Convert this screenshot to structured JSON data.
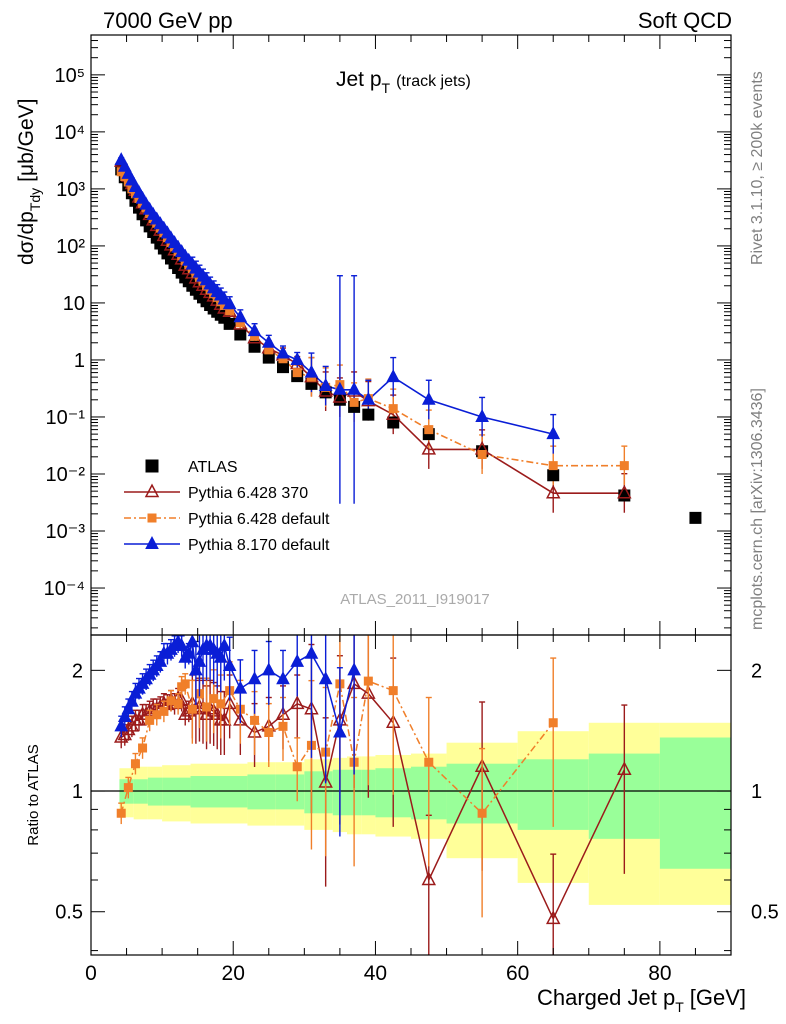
{
  "header": {
    "left": "7000 GeV pp",
    "right": "Soft QCD"
  },
  "side_labels": {
    "rivet": "Rivet 3.1.10, ≥ 200k events",
    "mcplots": "mcplots.cern.ch [arXiv:1306.3436]"
  },
  "chart_data": [
    {
      "type": "scatter",
      "panel": "main",
      "title": "Jet p",
      "title_sub": "T",
      "title_extra": "(track jets)",
      "ylabel": "dσ/dp",
      "ylabel_sub": "Tdy",
      "ylabel_unit": "[μb/GeV]",
      "yscale": "log",
      "xlim": [
        0,
        90
      ],
      "ylim": [
        1.5e-05,
        500000
      ],
      "ytick_labels": [
        "10⁻⁴",
        "10⁻³",
        "10⁻²",
        "10⁻¹",
        "1",
        "10",
        "10²",
        "10³",
        "10⁴",
        "10⁵"
      ],
      "watermark": "ATLAS_2011_I919017",
      "legend_position": "lower-left",
      "series": [
        {
          "name": "ATLAS",
          "color": "#000000",
          "marker": "square",
          "x": [
            4.25,
            4.75,
            5.25,
            5.75,
            6.25,
            6.75,
            7.25,
            7.75,
            8.25,
            8.75,
            9.25,
            9.75,
            10.25,
            10.75,
            11.25,
            11.75,
            12.25,
            12.75,
            13.25,
            13.75,
            14.25,
            14.75,
            15.25,
            15.75,
            16.25,
            16.75,
            17.25,
            17.75,
            18.25,
            18.75,
            19.5,
            21,
            23,
            25,
            27,
            29,
            31,
            33,
            35,
            37,
            39,
            42.5,
            47.5,
            55,
            65,
            75,
            85
          ],
          "y": [
            2200,
            1600,
            1150,
            840,
            620,
            470,
            360,
            280,
            220,
            175,
            140,
            110,
            90,
            74,
            60,
            50,
            41,
            34,
            28,
            24,
            20,
            17,
            14.5,
            12.5,
            10.7,
            9.2,
            8.0,
            7.0,
            6.2,
            5.5,
            4.3,
            2.8,
            1.7,
            1.1,
            0.75,
            0.52,
            0.38,
            0.27,
            0.2,
            0.15,
            0.11,
            0.08,
            0.05,
            0.025,
            0.0095,
            0.0042,
            0.0017
          ]
        },
        {
          "name": "Pythia 6.428 370",
          "color": "#9b1b1b",
          "marker": "open-triangle",
          "line": "solid",
          "x": [
            4.25,
            4.75,
            5.25,
            5.75,
            6.25,
            6.75,
            7.25,
            7.75,
            8.25,
            8.75,
            9.25,
            9.75,
            10.25,
            10.75,
            11.25,
            11.75,
            12.25,
            12.75,
            13.25,
            13.75,
            14.25,
            14.75,
            15.25,
            15.75,
            16.25,
            16.75,
            17.25,
            17.75,
            18.25,
            18.75,
            19.5,
            21,
            23,
            25,
            27,
            29,
            31,
            33,
            35,
            37,
            39,
            42.5,
            47.5,
            55,
            65,
            75
          ],
          "y": [
            3000,
            2250,
            1650,
            1220,
            930,
            710,
            560,
            440,
            350,
            280,
            225,
            185,
            150,
            123,
            102,
            84,
            70,
            58,
            45,
            39,
            33,
            27,
            23,
            20,
            17,
            15,
            13,
            11,
            9.3,
            8.0,
            7.0,
            4.2,
            2.4,
            1.6,
            1.2,
            0.85,
            0.5,
            0.28,
            0.22,
            0.28,
            0.19,
            0.11,
            0.027,
            0.027,
            0.0046,
            0.0046
          ]
        },
        {
          "name": "Pythia 6.428 default",
          "color": "#f07f2a",
          "marker": "small-square",
          "line": "dash-dot",
          "x": [
            4.25,
            4.75,
            5.25,
            5.75,
            6.25,
            6.75,
            7.25,
            7.75,
            8.25,
            8.75,
            9.25,
            9.75,
            10.25,
            10.75,
            11.25,
            11.75,
            12.25,
            12.75,
            13.25,
            13.75,
            14.25,
            14.75,
            15.25,
            15.75,
            16.25,
            16.75,
            17.25,
            17.75,
            18.25,
            18.75,
            19.5,
            21,
            23,
            25,
            27,
            29,
            31,
            33,
            35,
            37,
            39,
            42.5,
            47.5,
            55,
            65,
            75
          ],
          "y": [
            2000,
            1650,
            1320,
            1000,
            820,
            680,
            560,
            460,
            370,
            300,
            250,
            205,
            170,
            140,
            115,
            96,
            80,
            67,
            55,
            47,
            40,
            33,
            28,
            24,
            20,
            17,
            14.5,
            12.5,
            10.5,
            9.0,
            7.3,
            4.5,
            2.6,
            1.5,
            1.05,
            0.6,
            0.5,
            0.33,
            0.37,
            0.18,
            0.21,
            0.14,
            0.06,
            0.022,
            0.014,
            0.014
          ]
        },
        {
          "name": "Pythia 8.170 default",
          "color": "#0a1ed6",
          "marker": "triangle",
          "line": "solid",
          "x": [
            4.25,
            4.75,
            5.25,
            5.75,
            6.25,
            6.75,
            7.25,
            7.75,
            8.25,
            8.75,
            9.25,
            9.75,
            10.25,
            10.75,
            11.25,
            11.75,
            12.25,
            12.75,
            13.25,
            13.75,
            14.25,
            14.75,
            15.25,
            15.75,
            16.25,
            16.75,
            17.25,
            17.75,
            18.25,
            18.75,
            19.5,
            21,
            23,
            25,
            27,
            29,
            31,
            33,
            35,
            37,
            39,
            42.5,
            47.5,
            55,
            65
          ],
          "y": [
            3200,
            2450,
            1830,
            1400,
            1080,
            850,
            670,
            530,
            430,
            350,
            290,
            240,
            200,
            165,
            135,
            112,
            93,
            78,
            65,
            55,
            47,
            40,
            34,
            29,
            25,
            21,
            18,
            15.5,
            13.5,
            11.5,
            9.5,
            5.6,
            3.2,
            2.0,
            1.3,
            1.0,
            0.6,
            0.35,
            0.3,
            0.3,
            0.2,
            0.5,
            0.2,
            0.1,
            0.05
          ]
        }
      ]
    },
    {
      "type": "scatter",
      "panel": "ratio",
      "ylabel": "Ratio to ATLAS",
      "xlabel": "Charged Jet p",
      "xlabel_sub": "T",
      "xlabel_unit": "[GeV]",
      "yscale": "log",
      "xlim": [
        0,
        90
      ],
      "ylim": [
        0.39,
        2.45
      ],
      "ytick_labels": [
        "0.5",
        "1",
        "2"
      ],
      "xtick_labels": [
        "0",
        "20",
        "40",
        "60",
        "80"
      ],
      "bands": {
        "inner_color": "#99ff99",
        "outer_color": "#ffff99",
        "bins": [
          4,
          6,
          8,
          10,
          14,
          18,
          22,
          26,
          30,
          34,
          36,
          38,
          40,
          45,
          50,
          60,
          70,
          80,
          90
        ],
        "inner": [
          0.07,
          0.07,
          0.08,
          0.08,
          0.09,
          0.09,
          0.1,
          0.1,
          0.12,
          0.13,
          0.13,
          0.13,
          0.14,
          0.15,
          0.17,
          0.2,
          0.24,
          0.36,
          0.58
        ],
        "outer": [
          0.14,
          0.15,
          0.15,
          0.16,
          0.17,
          0.17,
          0.18,
          0.18,
          0.2,
          0.21,
          0.22,
          0.22,
          0.23,
          0.24,
          0.32,
          0.41,
          0.48,
          0.48,
          0.65
        ],
        "outer_upper": [
          0.14,
          0.15,
          0.15,
          0.16,
          0.17,
          0.17,
          0.18,
          0.18,
          0.2,
          0.21,
          0.22,
          0.22,
          0.23,
          0.24,
          0.32,
          0.41,
          0.48,
          0.48,
          1.1
        ]
      },
      "series": [
        {
          "name": "Pythia 6.428 370",
          "color": "#9b1b1b",
          "marker": "open-triangle",
          "x": [
            4.25,
            4.75,
            5.25,
            5.75,
            6.25,
            6.75,
            7.25,
            7.75,
            8.25,
            8.75,
            9.25,
            9.75,
            10.25,
            10.75,
            11.25,
            11.75,
            12.25,
            12.75,
            13.25,
            13.75,
            14.25,
            14.75,
            15.25,
            15.75,
            16.25,
            16.75,
            17.25,
            17.75,
            18.25,
            18.75,
            19.5,
            21,
            23,
            25,
            27,
            29,
            31,
            33,
            35,
            37,
            39,
            42.5,
            47.5,
            55,
            65,
            75
          ],
          "y": [
            1.36,
            1.38,
            1.42,
            1.45,
            1.5,
            1.5,
            1.55,
            1.55,
            1.58,
            1.6,
            1.6,
            1.62,
            1.65,
            1.64,
            1.68,
            1.65,
            1.7,
            1.68,
            1.55,
            1.58,
            1.65,
            1.6,
            1.62,
            1.6,
            1.55,
            1.6,
            1.58,
            1.55,
            1.5,
            1.5,
            1.65,
            1.5,
            1.4,
            1.45,
            1.55,
            1.65,
            1.6,
            1.05,
            1.5,
            1.85,
            1.75,
            1.48,
            0.6,
            1.15,
            0.48,
            1.13
          ]
        },
        {
          "name": "Pythia 6.428 default",
          "color": "#f07f2a",
          "marker": "small-square",
          "x": [
            4.25,
            5.25,
            6.25,
            7.25,
            8.25,
            9.25,
            10.25,
            11.25,
            12.25,
            12.75,
            13.25,
            14.25,
            15.25,
            16.25,
            17.25,
            18.25,
            19.5,
            21,
            23,
            25,
            27,
            29,
            31,
            33,
            35,
            37,
            39,
            42.5,
            47.5,
            55,
            65
          ],
          "y": [
            0.88,
            1.02,
            1.17,
            1.28,
            1.5,
            1.55,
            1.58,
            1.68,
            1.65,
            1.82,
            1.85,
            1.6,
            1.75,
            1.62,
            1.7,
            1.65,
            1.78,
            1.6,
            1.5,
            1.4,
            1.45,
            1.15,
            1.3,
            1.25,
            1.85,
            1.18,
            1.88,
            1.78,
            1.18,
            0.88,
            1.48
          ]
        },
        {
          "name": "Pythia 8.170 default",
          "color": "#0a1ed6",
          "marker": "triangle",
          "x": [
            4.25,
            4.75,
            5.25,
            5.75,
            6.25,
            6.75,
            7.25,
            7.75,
            8.25,
            8.75,
            9.25,
            9.75,
            10.25,
            10.75,
            11.25,
            11.75,
            12.25,
            12.75,
            13.25,
            13.75,
            14.25,
            14.75,
            15.25,
            15.75,
            16.25,
            16.75,
            17.25,
            17.75,
            18.25,
            18.75,
            19.5,
            21,
            23,
            25,
            27,
            29,
            31,
            33,
            35,
            37
          ],
          "y": [
            1.45,
            1.53,
            1.6,
            1.67,
            1.75,
            1.8,
            1.85,
            1.9,
            1.95,
            2.0,
            2.05,
            2.1,
            2.2,
            2.2,
            2.25,
            2.3,
            2.35,
            2.3,
            2.15,
            2.2,
            2.35,
            2.0,
            2.1,
            2.25,
            2.3,
            2.3,
            2.25,
            2.2,
            2.15,
            2.3,
            2.05,
            1.8,
            1.9,
            2.0,
            1.9,
            2.1,
            2.2,
            1.9,
            1.4,
            2.0
          ]
        }
      ]
    }
  ]
}
